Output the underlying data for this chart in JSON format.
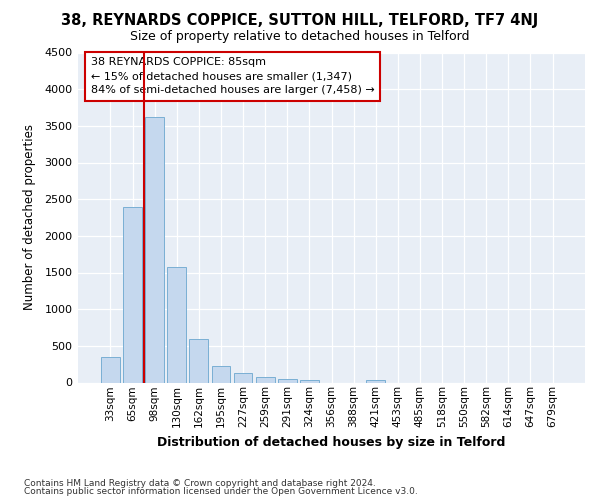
{
  "title": "38, REYNARDS COPPICE, SUTTON HILL, TELFORD, TF7 4NJ",
  "subtitle": "Size of property relative to detached houses in Telford",
  "xlabel": "Distribution of detached houses by size in Telford",
  "ylabel": "Number of detached properties",
  "categories": [
    "33sqm",
    "65sqm",
    "98sqm",
    "130sqm",
    "162sqm",
    "195sqm",
    "227sqm",
    "259sqm",
    "291sqm",
    "324sqm",
    "356sqm",
    "388sqm",
    "421sqm",
    "453sqm",
    "485sqm",
    "518sqm",
    "550sqm",
    "582sqm",
    "614sqm",
    "647sqm",
    "679sqm"
  ],
  "values": [
    350,
    2400,
    3620,
    1570,
    600,
    230,
    130,
    70,
    50,
    30,
    0,
    0,
    40,
    0,
    0,
    0,
    0,
    0,
    0,
    0,
    0
  ],
  "bar_color": "#c5d8ee",
  "bar_edge_color": "#7aafd4",
  "vline_color": "#cc0000",
  "vline_x": 1.5,
  "annotation_line1": "38 REYNARDS COPPICE: 85sqm",
  "annotation_line2": "← 15% of detached houses are smaller (1,347)",
  "annotation_line3": "84% of semi-detached houses are larger (7,458) →",
  "annotation_box_edgecolor": "#cc0000",
  "ylim": [
    0,
    4500
  ],
  "yticks": [
    0,
    500,
    1000,
    1500,
    2000,
    2500,
    3000,
    3500,
    4000,
    4500
  ],
  "plot_bg_color": "#e8eef6",
  "fig_bg_color": "#ffffff",
  "grid_color": "#ffffff",
  "footer_line1": "Contains HM Land Registry data © Crown copyright and database right 2024.",
  "footer_line2": "Contains public sector information licensed under the Open Government Licence v3.0."
}
